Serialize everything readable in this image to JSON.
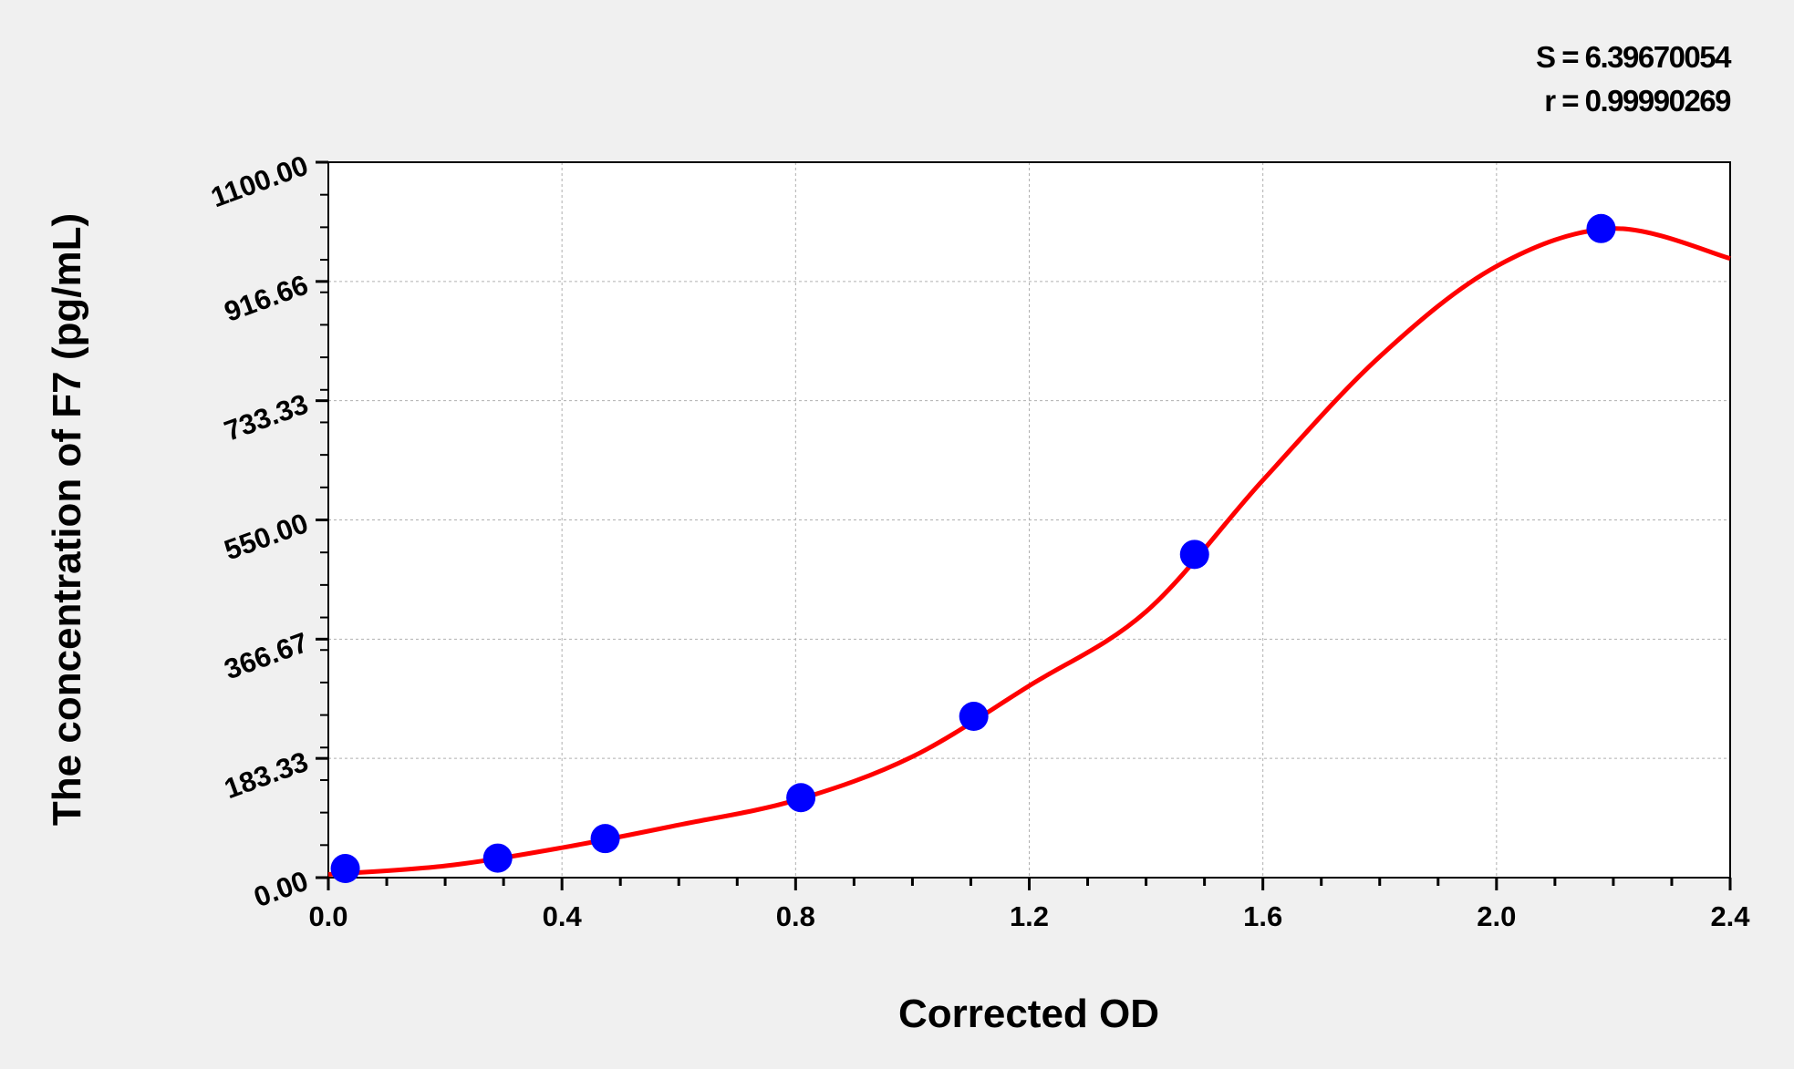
{
  "chart_data": {
    "type": "scatter",
    "title": "",
    "xlabel": "Corrected OD",
    "ylabel": "The concentration of F7 (pg/mL)",
    "xlim": [
      0,
      2.4
    ],
    "ylim": [
      0,
      1100
    ],
    "x_ticks": [
      "0.0",
      "0.4",
      "0.8",
      "1.2",
      "1.6",
      "2.0",
      "2.4"
    ],
    "y_ticks": [
      "0.00",
      "183.33",
      "366.67",
      "550.00",
      "733.33",
      "916.66",
      "1100.00"
    ],
    "grid": true,
    "annotations": {
      "s": "S = 6.39670054",
      "r": "r = 0.99990269"
    },
    "points": {
      "x": [
        0.029,
        0.29,
        0.474,
        0.809,
        1.105,
        1.483,
        2.179
      ],
      "y": [
        14,
        30,
        60,
        123,
        248,
        497,
        998
      ]
    },
    "fit_curve": {
      "x": [
        0,
        0.2,
        0.4,
        0.6,
        0.8,
        1.0,
        1.2,
        1.4,
        1.6,
        1.8,
        2.0,
        2.2,
        2.4
      ],
      "y": [
        5,
        18,
        46,
        81,
        119,
        186,
        295,
        409,
        611,
        801,
        940,
        998,
        952
      ]
    },
    "colors": {
      "points": "#0000ff",
      "curve": "#ff0000",
      "grid": "#b0b0b0"
    }
  }
}
